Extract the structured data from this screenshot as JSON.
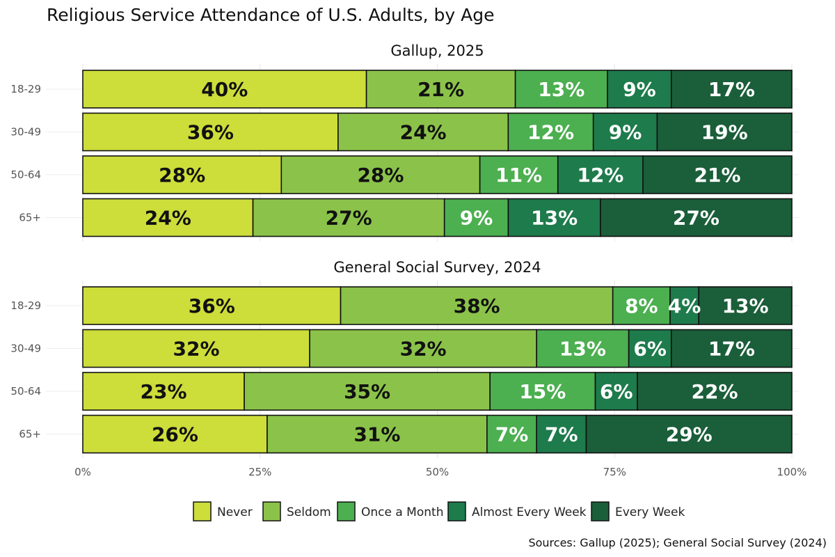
{
  "title": "Religious Service Attendance of U.S. Adults, by Age",
  "caption": "Sources: Gallup (2025); General Social Survey (2024)",
  "colors": {
    "Never": "#cddd3a",
    "Seldom": "#8bc34a",
    "Once a Month": "#4caf50",
    "Almost Every Week": "#1e7b4c",
    "Every Week": "#1b5e3a"
  },
  "chart_data": {
    "type": "stacked-bar-horizontal",
    "title": "Religious Service Attendance of U.S. Adults, by Age",
    "categories_legend": [
      "Never",
      "Seldom",
      "Once a Month",
      "Almost Every Week",
      "Every Week"
    ],
    "x_ticks": [
      "0%",
      "25%",
      "50%",
      "75%",
      "100%"
    ],
    "xlim": [
      0,
      100
    ],
    "legend_position": "bottom",
    "panels": [
      {
        "title": "Gallup, 2025",
        "rows": [
          {
            "age": "18-29",
            "values": [
              40,
              21,
              13,
              9,
              17
            ]
          },
          {
            "age": "30-49",
            "values": [
              36,
              24,
              12,
              9,
              19
            ]
          },
          {
            "age": "50-64",
            "values": [
              28,
              28,
              11,
              12,
              21
            ]
          },
          {
            "age": "65+",
            "values": [
              24,
              27,
              9,
              13,
              27
            ]
          }
        ]
      },
      {
        "title": "General Social Survey, 2024",
        "rows": [
          {
            "age": "18-29",
            "values": [
              36,
              38,
              8,
              4,
              13
            ]
          },
          {
            "age": "30-49",
            "values": [
              32,
              32,
              13,
              6,
              17
            ]
          },
          {
            "age": "50-64",
            "values": [
              23,
              35,
              15,
              6,
              22
            ]
          },
          {
            "age": "65+",
            "values": [
              26,
              31,
              7,
              7,
              29
            ]
          }
        ]
      }
    ]
  }
}
